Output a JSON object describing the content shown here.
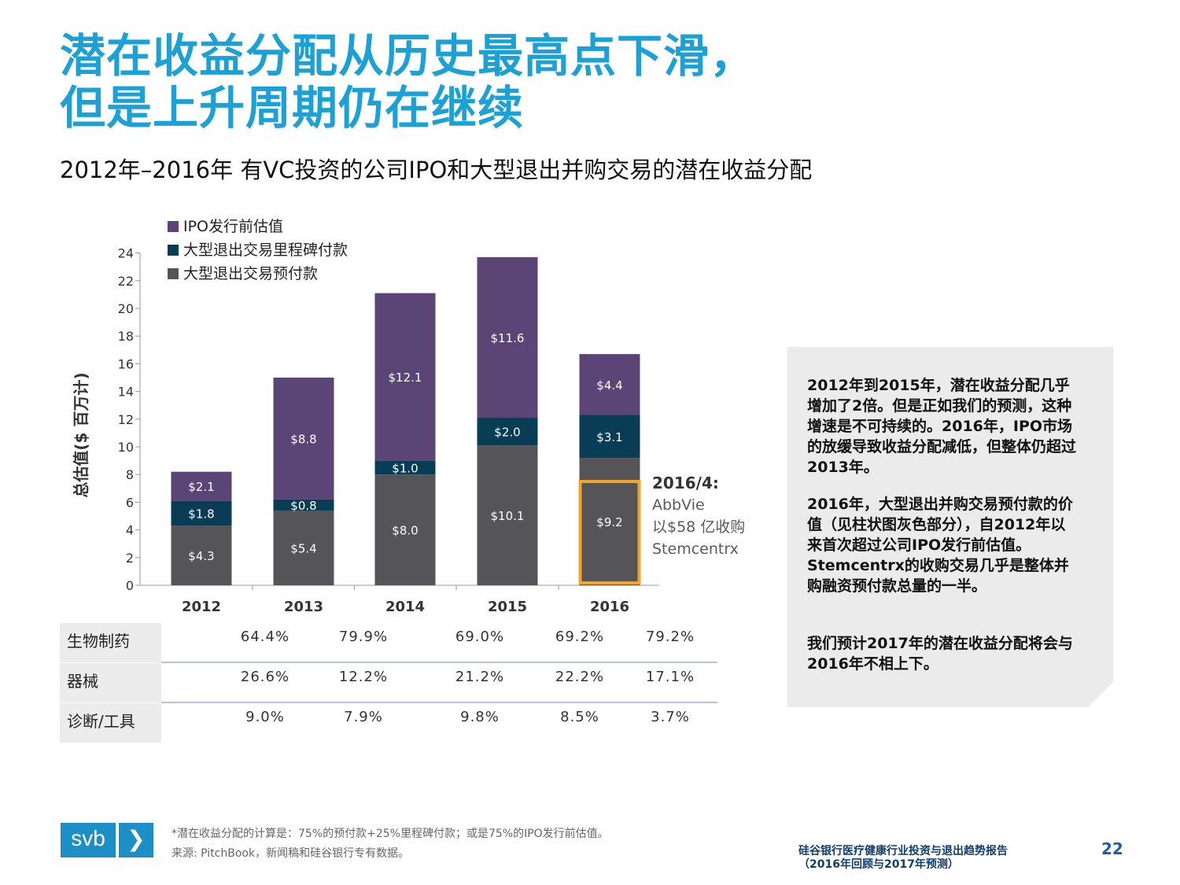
{
  "title": {
    "line1": "潜在收益分配从历史最高点下滑，",
    "line2": "但是上升周期仍在继续"
  },
  "subtitle": "2012年–2016年  有VC投资的公司IPO和大型退出并购交易的潜在收益分配",
  "colors": {
    "accent": "#1ba1d6",
    "ipo": "#5b4576",
    "milestone": "#093c55",
    "upfront": "#545459",
    "highlight": "#f6a623",
    "logo": "#1c90c6"
  },
  "chart_data": {
    "type": "bar",
    "stacked": true,
    "categories": [
      "2012",
      "2013",
      "2014",
      "2015",
      "2016"
    ],
    "series": [
      {
        "name": "大型退出交易预付款",
        "key": "upfront",
        "values": [
          4.3,
          5.4,
          8.0,
          10.1,
          9.2
        ],
        "labels": [
          "$4.3",
          "$5.4",
          "$8.0",
          "$10.1",
          "$9.2"
        ]
      },
      {
        "name": "大型退出交易里程碑付款",
        "key": "milestone",
        "values": [
          1.8,
          0.8,
          1.0,
          2.0,
          3.1
        ],
        "labels": [
          "$1.8",
          "$0.8",
          "$1.0",
          "$2.0",
          "$3.1"
        ]
      },
      {
        "name": "IPO发行前估值",
        "key": "ipo",
        "values": [
          2.1,
          8.8,
          12.1,
          11.6,
          4.4
        ],
        "labels": [
          "$2.1",
          "$8.8",
          "$12.1",
          "$11.6",
          "$4.4"
        ]
      }
    ],
    "legend_order": [
      "IPO发行前估值",
      "大型退出交易里程碑付款",
      "大型退出交易预付款"
    ],
    "ylabel": "总估值($ 百万计)",
    "ylim": [
      0,
      24
    ],
    "yticks": [
      0,
      2,
      4,
      6,
      8,
      10,
      12,
      14,
      16,
      18,
      20,
      22,
      24
    ],
    "highlight": {
      "category": "2016",
      "series": "大型退出交易预付款"
    }
  },
  "callout": {
    "heading": "2016/4:",
    "line1": "AbbVie",
    "line2": "以$58  亿收购",
    "line3": "Stemcentrx"
  },
  "sidebar": {
    "p1": "2012年到2015年，潜在收益分配几乎增加了2倍。但是正如我们的预测，这种增速是不可持续的。2016年，IPO市场的放缓导致收益分配减低，但整体仍超过2013年。",
    "p2": "2016年，大型退出并购交易预付款的价值（见柱状图灰色部分），自2012年以来首次超过公司IPO发行前估值。 Stemcentrx的收购交易几乎是整体并购融资预付款总量的一半。",
    "p3": "我们预计2017年的潜在收益分配将会与2016年不相上下。"
  },
  "table": {
    "rows": [
      {
        "label": "生物制药",
        "values": [
          "64.4%",
          "79.9%",
          "69.0%",
          "69.2%",
          "79.2%"
        ]
      },
      {
        "label": "器械",
        "values": [
          "26.6%",
          "12.2%",
          "21.2%",
          "22.2%",
          "17.1%"
        ]
      },
      {
        "label": "诊断/工具",
        "values": [
          "9.0%",
          "7.9%",
          "9.8%",
          "8.5%",
          "3.7%"
        ]
      }
    ]
  },
  "footer": {
    "logo_text": "svb",
    "logo_chevron": "❯",
    "footnote1": "*潜在收益分配的计算是：75%的预付款+25%里程碑付款；或是75%的IPO发行前估值。",
    "footnote2": "来源: PitchBook，新闻稿和硅谷银行专有数据。",
    "report_line1": "硅谷银行医疗健康行业投资与退出趋势报告",
    "report_line2": "（2016年回顾与2017年预测）",
    "page": "22"
  }
}
